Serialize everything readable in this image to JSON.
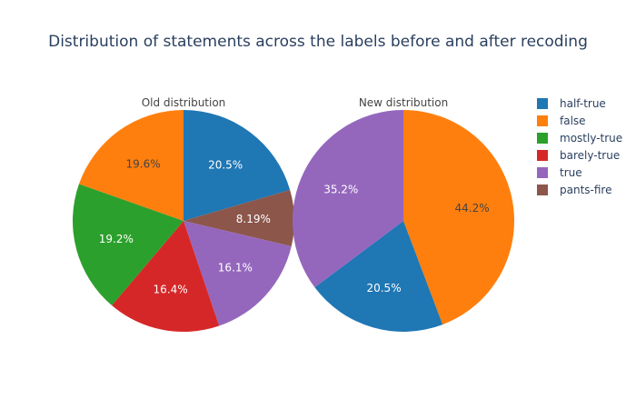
{
  "chart_data": {
    "type": "pie",
    "title": "Distribution of statements across the labels before and after recoding",
    "legend": {
      "placement": "top-right",
      "items": [
        {
          "label": "half-true",
          "color": "#1f77b4"
        },
        {
          "label": "false",
          "color": "#ff7f0e"
        },
        {
          "label": "mostly-true",
          "color": "#2ca02c"
        },
        {
          "label": "barely-true",
          "color": "#d62728"
        },
        {
          "label": "true",
          "color": "#9467bd"
        },
        {
          "label": "pants-fire",
          "color": "#8c564b"
        }
      ]
    },
    "charts": [
      {
        "subtitle": "Old distribution",
        "slices": [
          {
            "label": "half-true",
            "value": 20.5,
            "text": "20.5%"
          },
          {
            "label": "pants-fire",
            "value": 8.19,
            "text": "8.19%"
          },
          {
            "label": "true",
            "value": 16.1,
            "text": "16.1%"
          },
          {
            "label": "barely-true",
            "value": 16.4,
            "text": "16.4%"
          },
          {
            "label": "mostly-true",
            "value": 19.2,
            "text": "19.2%"
          },
          {
            "label": "false",
            "value": 19.6,
            "text": "19.6%"
          }
        ]
      },
      {
        "subtitle": "New distribution",
        "slices": [
          {
            "label": "false",
            "value": 44.2,
            "text": "44.2%"
          },
          {
            "label": "half-true",
            "value": 20.5,
            "text": "20.5%"
          },
          {
            "label": "true",
            "value": 35.2,
            "text": "35.2%"
          }
        ]
      }
    ]
  }
}
